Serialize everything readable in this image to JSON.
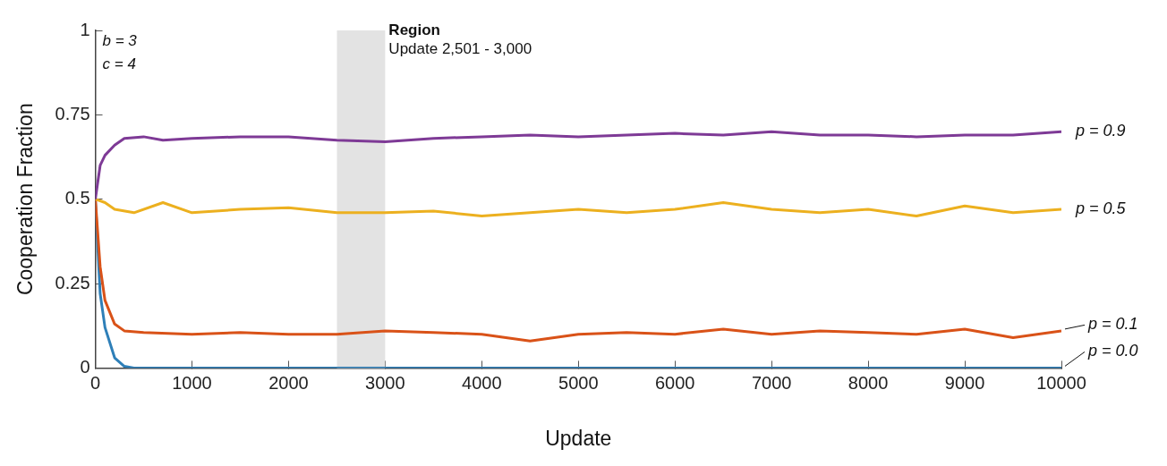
{
  "chart_data": {
    "type": "line",
    "xlabel": "Update",
    "ylabel": "Cooperation Fraction",
    "xlim": [
      0,
      10000
    ],
    "ylim": [
      0,
      1
    ],
    "xticks": [
      0,
      1000,
      2000,
      3000,
      4000,
      5000,
      6000,
      7000,
      8000,
      9000,
      10000
    ],
    "yticks": [
      0,
      0.25,
      0.5,
      0.75,
      1
    ],
    "grid": false,
    "legend": false,
    "marker": "none",
    "line_style": "solid",
    "bands": [
      {
        "axis": "x",
        "from": 2501,
        "to": 3000,
        "label": "Region",
        "color": "#e3e3e3"
      }
    ],
    "annotations": [
      "b = 3",
      "c = 4",
      "Update 2,501 - 3,000"
    ],
    "series": [
      {
        "name": "p = 0.9",
        "color": "#7e3a96",
        "x": [
          0,
          50,
          100,
          200,
          300,
          500,
          700,
          1000,
          1500,
          2000,
          2500,
          3000,
          3500,
          4000,
          4500,
          5000,
          5500,
          6000,
          6500,
          7000,
          7500,
          8000,
          8500,
          9000,
          9500,
          10000
        ],
        "values": [
          0.5,
          0.6,
          0.63,
          0.66,
          0.68,
          0.685,
          0.675,
          0.68,
          0.685,
          0.685,
          0.675,
          0.67,
          0.68,
          0.685,
          0.69,
          0.685,
          0.69,
          0.695,
          0.69,
          0.7,
          0.69,
          0.69,
          0.685,
          0.69,
          0.69,
          0.7
        ]
      },
      {
        "name": "p = 0.5",
        "color": "#ecb01f",
        "x": [
          0,
          100,
          200,
          400,
          700,
          1000,
          1500,
          2000,
          2500,
          3000,
          3500,
          4000,
          4500,
          5000,
          5500,
          6000,
          6500,
          7000,
          7500,
          8000,
          8500,
          9000,
          9500,
          10000
        ],
        "values": [
          0.5,
          0.49,
          0.47,
          0.46,
          0.49,
          0.46,
          0.47,
          0.475,
          0.46,
          0.46,
          0.465,
          0.45,
          0.46,
          0.47,
          0.46,
          0.47,
          0.49,
          0.47,
          0.46,
          0.47,
          0.45,
          0.48,
          0.46,
          0.47
        ]
      },
      {
        "name": "p = 0.1",
        "color": "#d95218",
        "x": [
          0,
          50,
          100,
          200,
          300,
          500,
          1000,
          1500,
          2000,
          2500,
          3000,
          3500,
          4000,
          4500,
          5000,
          5500,
          6000,
          6500,
          7000,
          7500,
          8000,
          8500,
          9000,
          9500,
          10000
        ],
        "values": [
          0.5,
          0.3,
          0.2,
          0.13,
          0.11,
          0.105,
          0.1,
          0.105,
          0.1,
          0.1,
          0.11,
          0.105,
          0.1,
          0.08,
          0.1,
          0.105,
          0.1,
          0.115,
          0.1,
          0.11,
          0.105,
          0.1,
          0.115,
          0.09,
          0.11
        ]
      },
      {
        "name": "p = 0.0",
        "color": "#2e7fb8",
        "x": [
          0,
          50,
          100,
          200,
          300,
          400,
          10000
        ],
        "values": [
          0.5,
          0.22,
          0.12,
          0.03,
          0.005,
          0,
          0
        ]
      }
    ]
  }
}
